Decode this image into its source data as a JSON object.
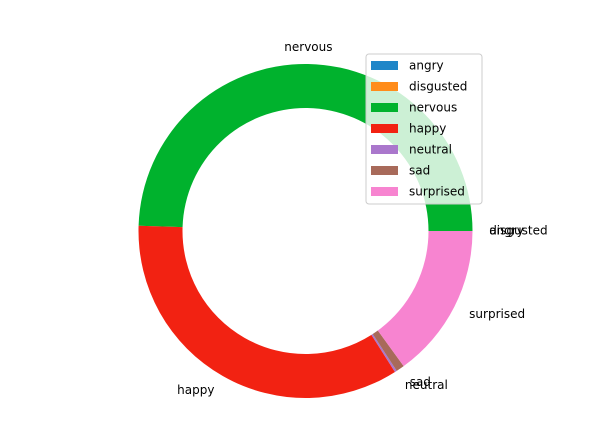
{
  "chart_data": {
    "type": "pie",
    "donut": true,
    "title": "",
    "categories": [
      "angry",
      "disgusted",
      "nervous",
      "happy",
      "neutral",
      "sad",
      "surprised"
    ],
    "values": [
      0.0,
      0.0,
      49.5,
      34.5,
      0.2,
      0.8,
      15.0
    ],
    "colors": [
      "#1f86c8",
      "#ff8c1a",
      "#00b22d",
      "#f22212",
      "#aa77cc",
      "#a86a5a",
      "#f784d0"
    ],
    "start_angle_deg": 0,
    "counterclock": true,
    "legend": {
      "position": "upper-right",
      "entries": [
        "angry",
        "disgusted",
        "nervous",
        "happy",
        "neutral",
        "sad",
        "surprised"
      ]
    }
  }
}
